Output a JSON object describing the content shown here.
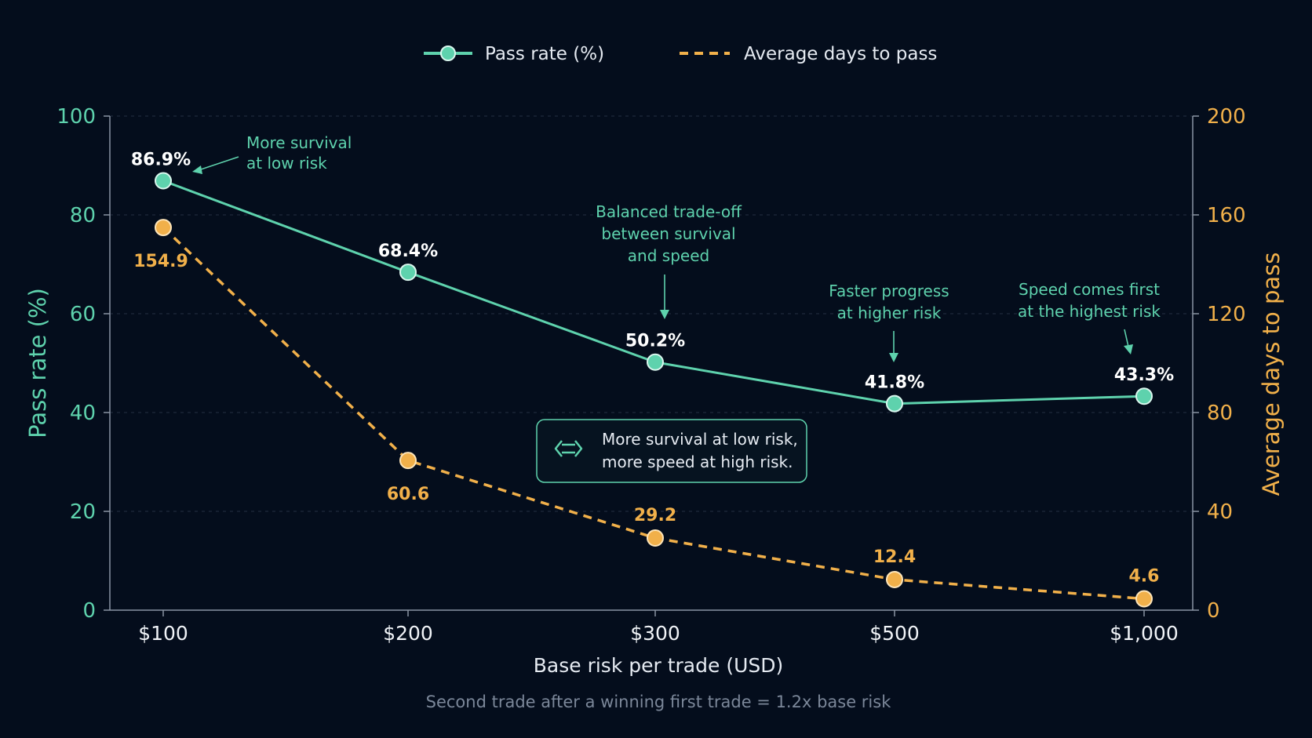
{
  "chart_data": {
    "type": "line",
    "categories": [
      "$100",
      "$200",
      "$300",
      "$500",
      "$1,000"
    ],
    "series": [
      {
        "name": "Pass rate (%)",
        "axis": "left",
        "style": "solid-with-markers",
        "color": "#5ed2ad",
        "values": [
          86.9,
          68.4,
          50.2,
          41.8,
          43.3
        ],
        "labels": [
          "86.9%",
          "68.4%",
          "50.2%",
          "41.8%",
          "43.3%"
        ]
      },
      {
        "name": "Average days to pass",
        "axis": "right",
        "style": "dashed-with-markers",
        "color": "#f1b04a",
        "values": [
          154.9,
          60.6,
          29.2,
          12.4,
          4.6
        ],
        "labels": [
          "154.9",
          "60.6",
          "29.2",
          "12.4",
          "4.6"
        ]
      }
    ],
    "xlabel": "Base risk per trade (USD)",
    "ylabel_left": "Pass rate (%)",
    "ylabel_right": "Average days to pass",
    "ylim_left": [
      0,
      100
    ],
    "ylim_right": [
      0,
      200
    ],
    "yticks_left": [
      0,
      20,
      40,
      60,
      80,
      100
    ],
    "yticks_right": [
      0,
      40,
      80,
      120,
      160,
      200
    ],
    "subtitle": "Second trade after a winning first trade = 1.2x base risk",
    "grid": "horizontal-dashed",
    "legend_position": "top-center",
    "annotations": [
      {
        "lines": [
          "More survival",
          "at low risk"
        ],
        "category": "$100"
      },
      {
        "lines": [
          "Balanced trade-off",
          "between survival",
          "and speed"
        ],
        "category": "$300"
      },
      {
        "lines": [
          "Faster progress",
          "at higher risk"
        ],
        "category": "$500"
      },
      {
        "lines": [
          "Speed comes first",
          "at the highest risk"
        ],
        "category": "$1,000"
      }
    ],
    "callout": {
      "icon": "two-way-arrows-icon",
      "lines": [
        "More survival at low risk,",
        "more speed at high risk."
      ]
    }
  },
  "colors": {
    "background": "#040d1c",
    "pass": "#5ed2ad",
    "days": "#f1b04a",
    "grid": "#253042",
    "axis": "#8a94a3"
  }
}
